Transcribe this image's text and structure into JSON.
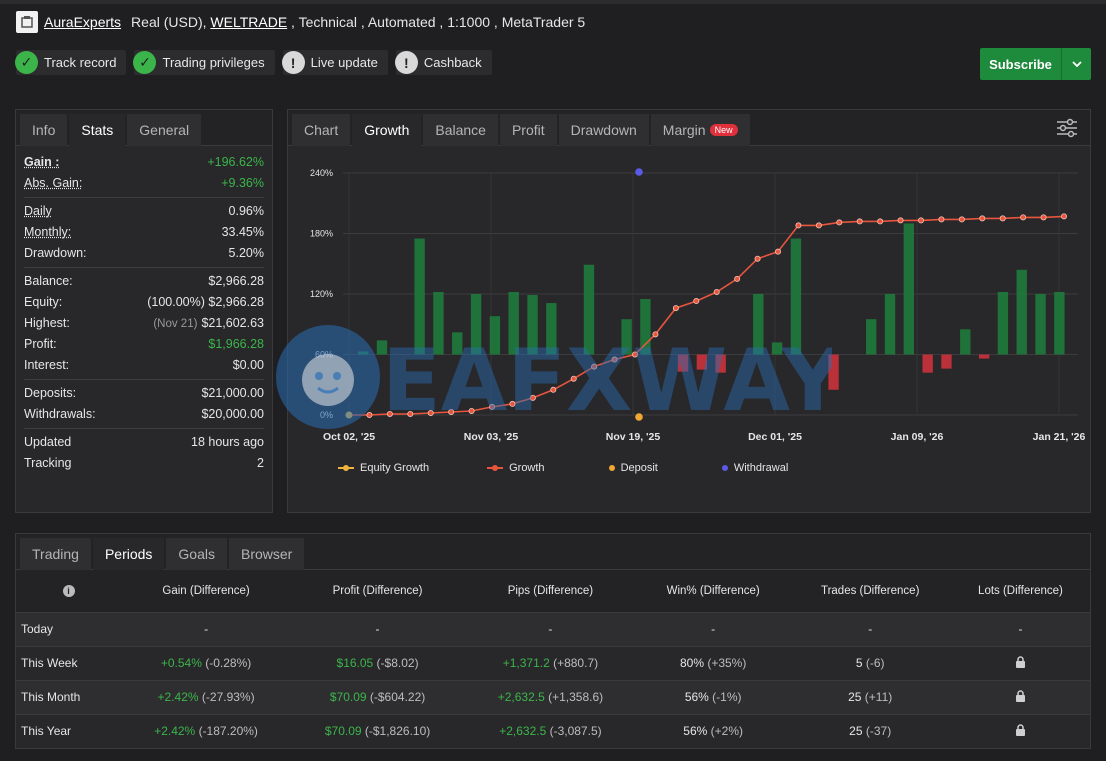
{
  "header": {
    "account_name": "AuraExperts",
    "meta_prefix": "Real (USD), ",
    "broker": "WELTRADE",
    "meta_suffix": " , Technical , Automated , 1:1000 , MetaTrader 5"
  },
  "badges": [
    {
      "label": "Track record",
      "status": "ok"
    },
    {
      "label": "Trading privileges",
      "status": "ok"
    },
    {
      "label": "Live update",
      "status": "warn"
    },
    {
      "label": "Cashback",
      "status": "warn"
    }
  ],
  "subscribe": {
    "label": "Subscribe"
  },
  "stats_panel": {
    "tabs": [
      "Info",
      "Stats",
      "General"
    ],
    "active_tab": "Stats",
    "gain_label": "Gain :",
    "gain_value": "+196.62%",
    "abs_gain_label": "Abs. Gain:",
    "abs_gain_value": "+9.36%",
    "daily_label": "Daily",
    "daily_value": "0.96%",
    "monthly_label": "Monthly:",
    "monthly_value": "33.45%",
    "drawdown_label": "Drawdown:",
    "drawdown_value": "5.20%",
    "balance_label": "Balance:",
    "balance_value": "$2,966.28",
    "equity_label": "Equity:",
    "equity_pct": "(100.00%)",
    "equity_value": "$2,966.28",
    "highest_label": "Highest:",
    "highest_date": "(Nov 21)",
    "highest_value": "$21,602.63",
    "profit_label": "Profit:",
    "profit_value": "$1,966.28",
    "interest_label": "Interest:",
    "interest_value": "$0.00",
    "deposits_label": "Deposits:",
    "deposits_value": "$21,000.00",
    "withdrawals_label": "Withdrawals:",
    "withdrawals_value": "$20,000.00",
    "updated_label": "Updated",
    "updated_value": "18 hours ago",
    "tracking_label": "Tracking",
    "tracking_value": "2"
  },
  "chart_panel": {
    "tabs": [
      "Chart",
      "Growth",
      "Balance",
      "Profit",
      "Drawdown",
      "Margin"
    ],
    "active_tab": "Growth",
    "new_tag": "New",
    "legend": [
      {
        "label": "Equity Growth",
        "color": "#f0b43c"
      },
      {
        "label": "Growth",
        "color": "#e8553c"
      },
      {
        "label": "Deposit",
        "color": "#f0a832"
      },
      {
        "label": "Withdrawal",
        "color": "#5a5ae6"
      }
    ]
  },
  "chart_data": {
    "type": "bar",
    "yticks": [
      "240%",
      "180%",
      "120%",
      "60%",
      "0%"
    ],
    "xticks": [
      "Oct 02, '25",
      "Nov 03, '25",
      "Nov 19, '25",
      "Dec 01, '25",
      "Jan 09, '26",
      "Jan 21, '26"
    ],
    "ylim": [
      0,
      240
    ],
    "bars": [
      3,
      14,
      0,
      115,
      62,
      22,
      60,
      38,
      62,
      59,
      51,
      0,
      89,
      0,
      35,
      55,
      0,
      -17,
      -15,
      -18,
      0,
      60,
      12,
      115,
      0,
      -35,
      0,
      35,
      60,
      130,
      -18,
      -14,
      25,
      -4,
      62,
      84,
      60,
      62
    ],
    "growth": [
      0,
      0,
      1,
      1,
      2,
      3,
      4,
      8,
      11,
      17,
      25,
      36,
      48,
      55,
      60,
      80,
      106,
      113,
      122,
      135,
      155,
      162,
      188,
      188,
      191,
      192,
      192,
      193,
      193,
      194,
      194,
      195,
      195,
      196,
      196,
      197
    ],
    "deposit_marker": {
      "x": "Nov 19, '25",
      "y": 0
    },
    "withdrawal_marker": {
      "x": "Nov 19, '25",
      "y": 240
    }
  },
  "periods_panel": {
    "tabs": [
      "Trading",
      "Periods",
      "Goals",
      "Browser"
    ],
    "active_tab": "Periods",
    "columns": [
      "Gain (Difference)",
      "Profit (Difference)",
      "Pips (Difference)",
      "Win% (Difference)",
      "Trades (Difference)",
      "Lots (Difference)"
    ],
    "rows": [
      {
        "period": "Today",
        "gain": "-",
        "gain_diff": "",
        "profit": "-",
        "profit_diff": "",
        "pips": "-",
        "pips_diff": "",
        "win": "-",
        "win_diff": "",
        "trades": "-",
        "trades_diff": "",
        "locked": false
      },
      {
        "period": "This Week",
        "gain": "+0.54%",
        "gain_diff": " (-0.28%)",
        "profit": "$16.05",
        "profit_diff": " (-$8.02)",
        "pips": "+1,371.2",
        "pips_diff": " (+880.7)",
        "win": "80%",
        "win_diff": " (+35%)",
        "trades": "5",
        "trades_diff": " (-6)",
        "locked": true
      },
      {
        "period": "This Month",
        "gain": "+2.42%",
        "gain_diff": " (-27.93%)",
        "profit": "$70.09",
        "profit_diff": " (-$604.22)",
        "pips": "+2,632.5",
        "pips_diff": " (+1,358.6)",
        "win": "56%",
        "win_diff": " (-1%)",
        "trades": "25",
        "trades_diff": " (+11)",
        "locked": true
      },
      {
        "period": "This Year",
        "gain": "+2.42%",
        "gain_diff": " (-187.20%)",
        "profit": "$70.09",
        "profit_diff": " (-$1,826.10)",
        "pips": "+2,632.5",
        "pips_diff": " (-3,087.5)",
        "win": "56%",
        "win_diff": " (+2%)",
        "trades": "25",
        "trades_diff": " (-37)",
        "locked": true
      }
    ]
  },
  "watermark": {
    "text": "EAFXWAY"
  }
}
